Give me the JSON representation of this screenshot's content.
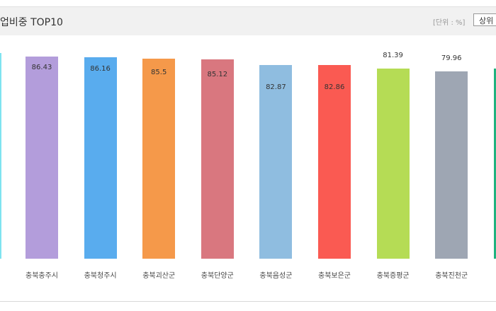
{
  "header": {
    "title": "업비중 TOP10",
    "unit": "[단위 : %]",
    "button_label": "상위"
  },
  "chart_data": {
    "type": "bar",
    "title": "업비중 TOP10",
    "ylabel": "",
    "xlabel": "",
    "unit": "%",
    "ylim": [
      0,
      88
    ],
    "grid": false,
    "categories": [
      "충북충주시",
      "충북청주시",
      "충북괴산군",
      "충북단양군",
      "충북음성군",
      "충북보은군",
      "충북증평군",
      "충북진천군"
    ],
    "values": [
      86.43,
      86.16,
      85.5,
      85.12,
      82.87,
      82.86,
      81.39,
      79.96
    ],
    "value_labels": [
      "86.43",
      "86.16",
      "85.5",
      "85.12",
      "82.87",
      "82.86",
      "81.39",
      "79.96"
    ],
    "colors": [
      "#b39ddb",
      "#59acee",
      "#f5994a",
      "#d9777f",
      "#8fbde0",
      "#fa5a52",
      "#b5dc55",
      "#9ea6b3"
    ],
    "clipped_bar_colors": {
      "left": "#7fe3f0",
      "right": "#1fb27f"
    }
  }
}
